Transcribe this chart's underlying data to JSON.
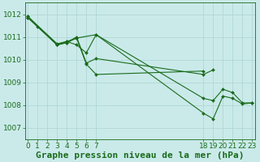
{
  "background_color": "#caeaea",
  "grid_color": "#b0d8d4",
  "line_color": "#1a6b1a",
  "marker_color": "#1a6b1a",
  "title": "Graphe pression niveau de la mer (hPa)",
  "xlim": [
    -0.3,
    23.3
  ],
  "ylim": [
    1006.5,
    1012.5
  ],
  "yticks": [
    1007,
    1008,
    1009,
    1010,
    1011,
    1012
  ],
  "xticks_left": [
    0,
    1,
    2,
    3,
    4,
    5,
    6,
    7
  ],
  "xticks_right": [
    18,
    19,
    20,
    21,
    22,
    23
  ],
  "lines": [
    {
      "x": [
        0,
        3,
        4,
        5,
        7,
        18,
        19,
        20,
        21,
        22,
        23
      ],
      "y": [
        1011.9,
        1010.7,
        1010.8,
        1010.95,
        1011.1,
        1008.3,
        1008.2,
        1008.7,
        1008.55,
        1008.1,
        1008.1
      ]
    },
    {
      "x": [
        0,
        1,
        3,
        4,
        5,
        6,
        7,
        18,
        19,
        20,
        21,
        22,
        23
      ],
      "y": [
        1011.85,
        1011.45,
        1010.65,
        1010.8,
        1010.65,
        1010.3,
        1011.1,
        1007.65,
        1007.4,
        1008.4,
        1008.3,
        1008.05,
        1008.1
      ]
    },
    {
      "x": [
        0,
        3,
        4,
        5,
        6,
        7,
        18,
        19
      ],
      "y": [
        1011.9,
        1010.65,
        1010.75,
        1011.0,
        1009.85,
        1010.05,
        1009.35,
        1009.55
      ]
    },
    {
      "x": [
        0,
        3,
        4,
        5,
        6,
        7,
        18
      ],
      "y": [
        1011.85,
        1010.65,
        1010.75,
        1010.95,
        1009.8,
        1009.35,
        1009.5
      ]
    }
  ],
  "title_fontsize": 8,
  "tick_fontsize": 6.5,
  "title_color": "#1a6b1a",
  "tick_color": "#1a6b1a",
  "figsize": [
    3.2,
    2.0
  ],
  "dpi": 100
}
